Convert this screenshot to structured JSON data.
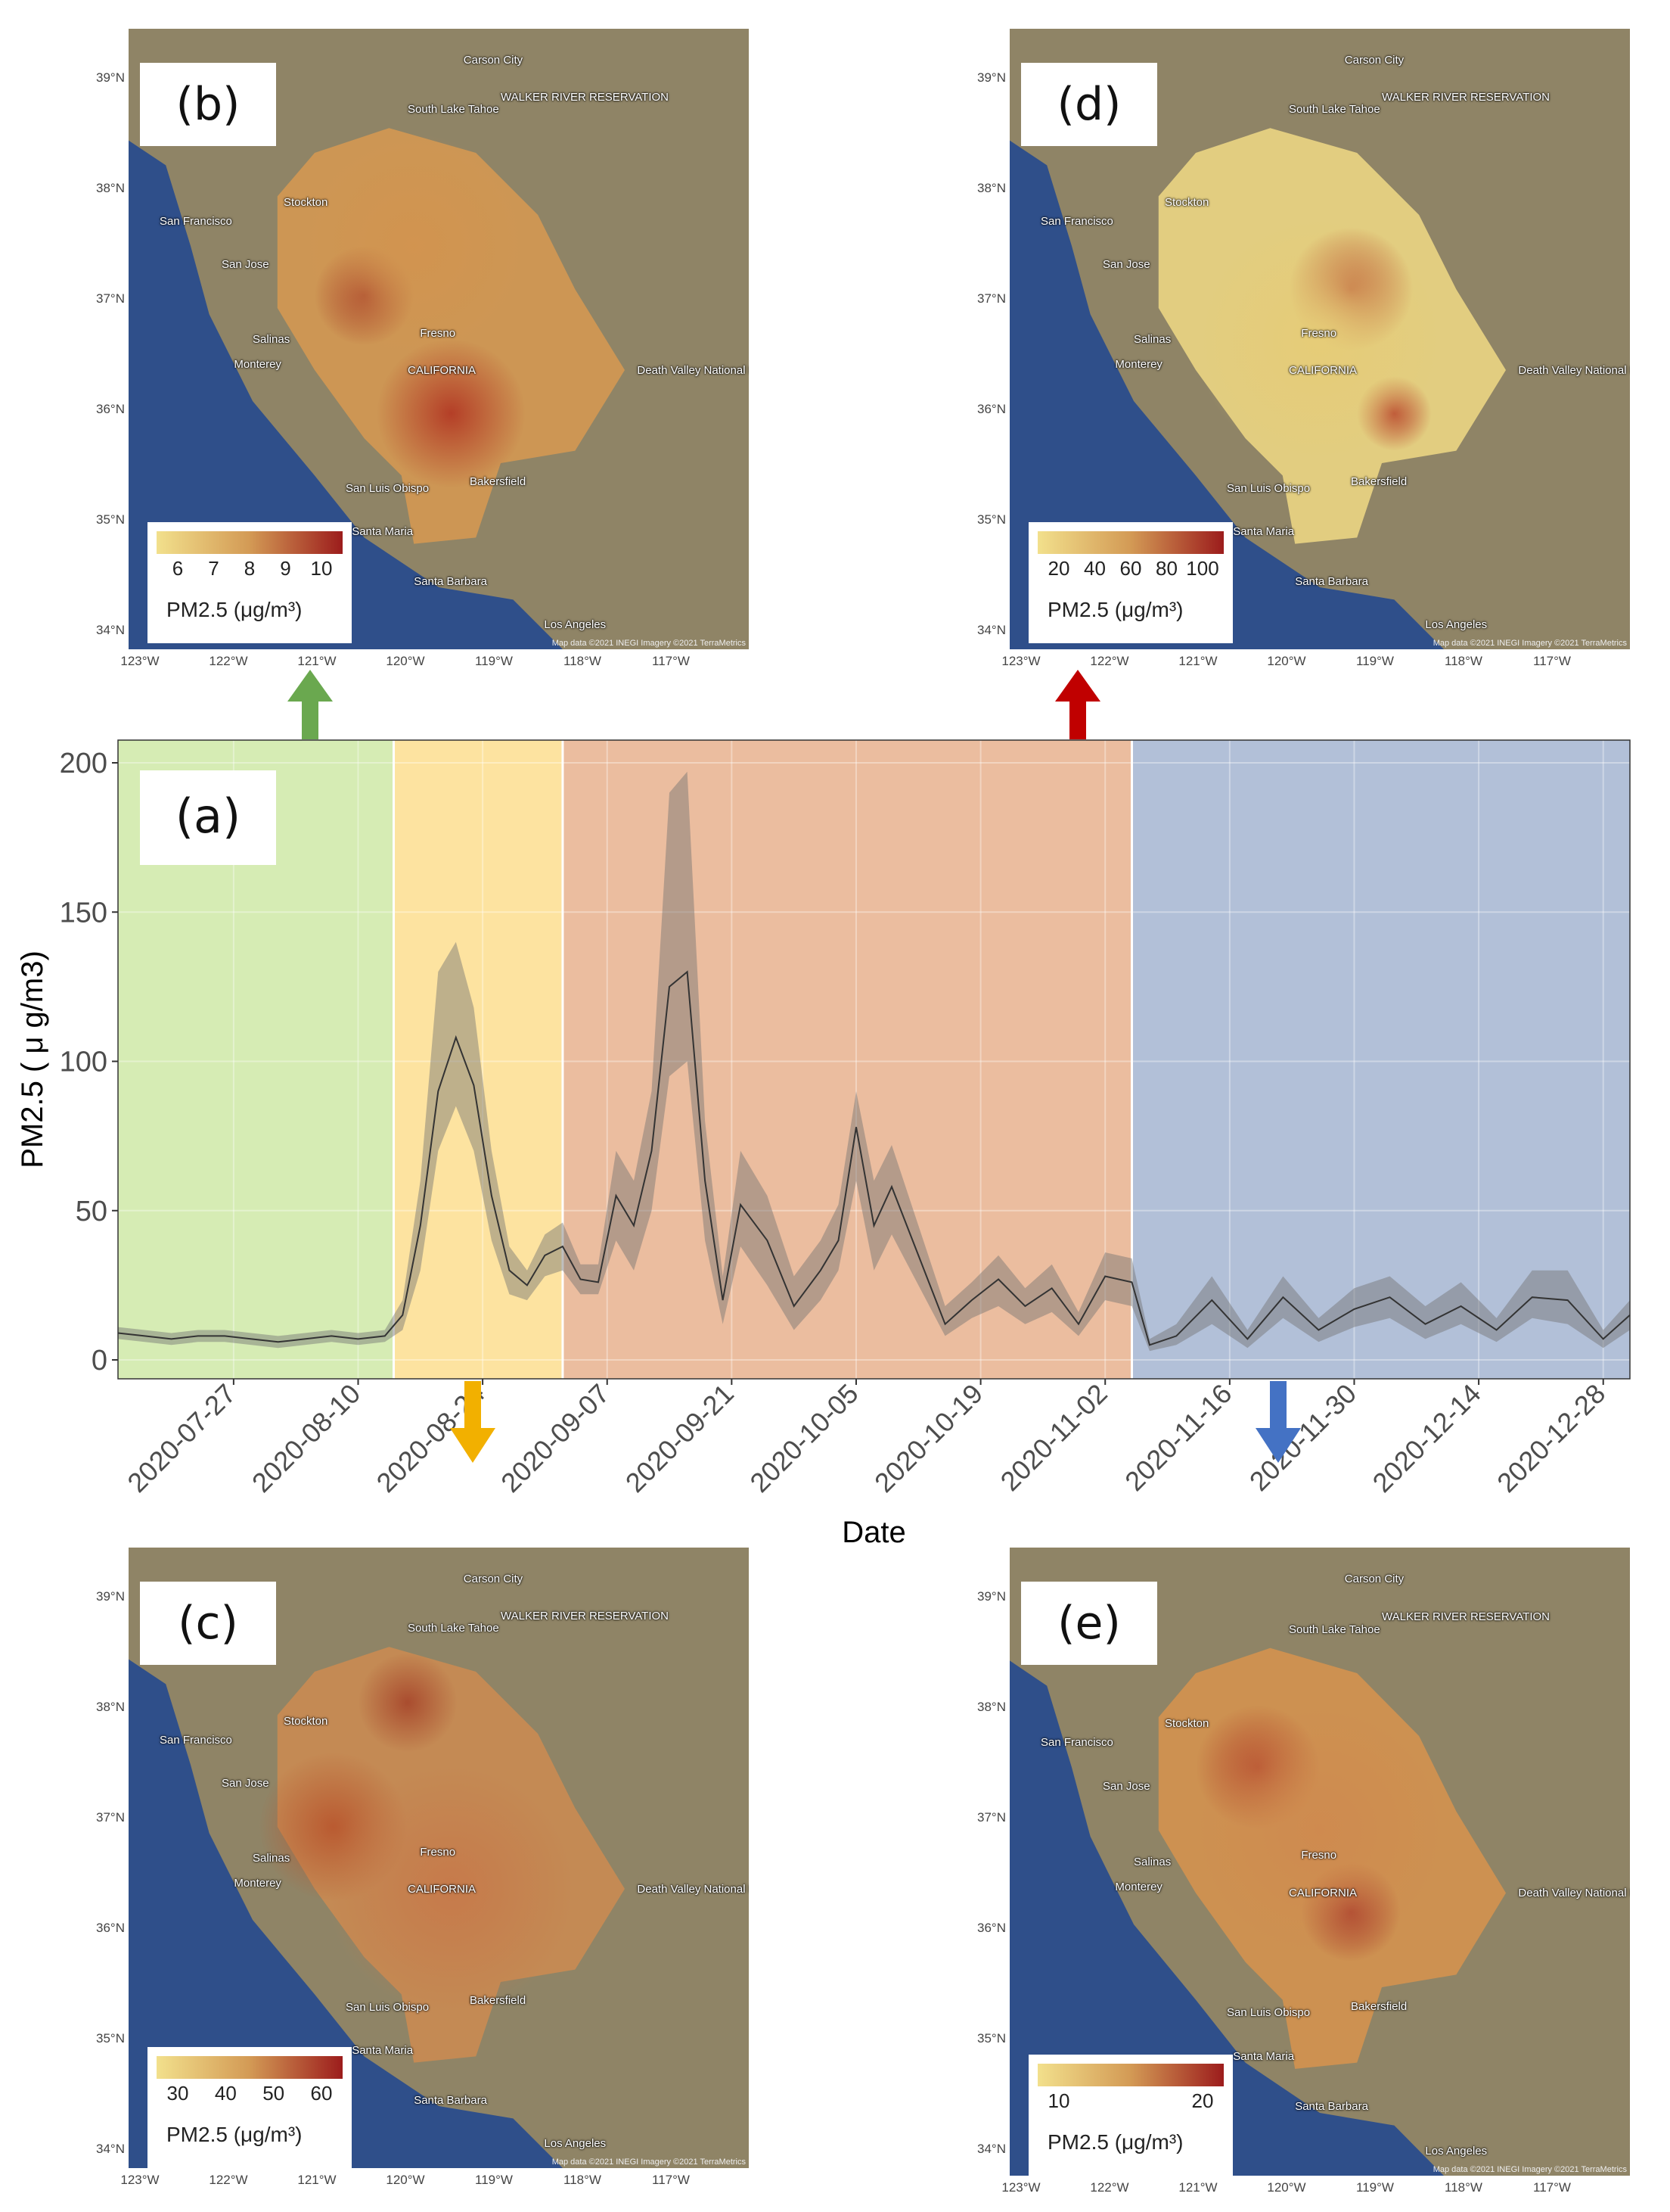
{
  "chart_data": {
    "type": "line",
    "panel_label": "(a)",
    "xlabel": "Date",
    "ylabel": "PM2.5 ( μ g/m3)",
    "ylim": [
      0,
      200
    ],
    "yticks": [
      0,
      50,
      100,
      150,
      200
    ],
    "xticks": [
      "2020-07-27",
      "2020-08-10",
      "2020-08-24",
      "2020-09-07",
      "2020-09-21",
      "2020-10-05",
      "2020-10-19",
      "2020-11-02",
      "2020-11-16",
      "2020-11-30",
      "2020-12-14",
      "2020-12-28"
    ],
    "xrange": [
      "2020-07-14",
      "2020-12-31"
    ],
    "grid": true,
    "periods": [
      {
        "start": "2020-07-14",
        "end": "2020-08-14",
        "color": "#d6ecb4"
      },
      {
        "start": "2020-08-14",
        "end": "2020-09-02",
        "color": "#fde3a0"
      },
      {
        "start": "2020-09-02",
        "end": "2020-11-05",
        "color": "#ebbd9f"
      },
      {
        "start": "2020-11-05",
        "end": "2020-12-31",
        "color": "#b2c0d8"
      }
    ],
    "series": [
      {
        "color": "#333333",
        "band_color": "#707070",
        "x": [
          "2020-07-14",
          "2020-07-17",
          "2020-07-20",
          "2020-07-23",
          "2020-07-26",
          "2020-07-29",
          "2020-08-01",
          "2020-08-04",
          "2020-08-07",
          "2020-08-10",
          "2020-08-13",
          "2020-08-15",
          "2020-08-17",
          "2020-08-19",
          "2020-08-21",
          "2020-08-23",
          "2020-08-25",
          "2020-08-27",
          "2020-08-29",
          "2020-08-31",
          "2020-09-02",
          "2020-09-04",
          "2020-09-06",
          "2020-09-08",
          "2020-09-10",
          "2020-09-12",
          "2020-09-14",
          "2020-09-16",
          "2020-09-18",
          "2020-09-20",
          "2020-09-22",
          "2020-09-25",
          "2020-09-28",
          "2020-10-01",
          "2020-10-03",
          "2020-10-05",
          "2020-10-07",
          "2020-10-09",
          "2020-10-12",
          "2020-10-15",
          "2020-10-18",
          "2020-10-21",
          "2020-10-24",
          "2020-10-27",
          "2020-10-30",
          "2020-11-02",
          "2020-11-05",
          "2020-11-07",
          "2020-11-10",
          "2020-11-14",
          "2020-11-18",
          "2020-11-22",
          "2020-11-26",
          "2020-11-30",
          "2020-12-04",
          "2020-12-08",
          "2020-12-12",
          "2020-12-16",
          "2020-12-20",
          "2020-12-24",
          "2020-12-28",
          "2020-12-31"
        ],
        "y": [
          9,
          8,
          7,
          8,
          8,
          7,
          6,
          7,
          8,
          7,
          8,
          15,
          45,
          90,
          108,
          92,
          55,
          30,
          25,
          35,
          38,
          27,
          26,
          55,
          45,
          70,
          125,
          130,
          60,
          20,
          52,
          40,
          18,
          30,
          40,
          78,
          45,
          58,
          35,
          12,
          20,
          27,
          18,
          24,
          12,
          28,
          26,
          5,
          8,
          20,
          7,
          21,
          10,
          17,
          21,
          12,
          18,
          10,
          21,
          20,
          7,
          15
        ],
        "lower": [
          7,
          6,
          5,
          6,
          6,
          5,
          4,
          5,
          6,
          5,
          6,
          10,
          30,
          70,
          85,
          70,
          40,
          22,
          20,
          28,
          30,
          22,
          22,
          40,
          30,
          50,
          95,
          100,
          40,
          12,
          38,
          25,
          10,
          20,
          30,
          60,
          30,
          42,
          25,
          8,
          14,
          18,
          12,
          16,
          8,
          20,
          18,
          3,
          5,
          12,
          4,
          14,
          6,
          11,
          14,
          7,
          12,
          6,
          14,
          12,
          4,
          10
        ],
        "upper": [
          11,
          10,
          9,
          10,
          10,
          9,
          8,
          9,
          10,
          9,
          10,
          20,
          60,
          130,
          140,
          118,
          70,
          38,
          30,
          42,
          46,
          32,
          32,
          70,
          60,
          90,
          190,
          197,
          80,
          28,
          70,
          55,
          28,
          40,
          52,
          90,
          60,
          72,
          45,
          18,
          26,
          35,
          24,
          32,
          16,
          36,
          34,
          7,
          12,
          28,
          10,
          28,
          14,
          24,
          28,
          18,
          26,
          14,
          30,
          30,
          10,
          20
        ]
      }
    ]
  },
  "maps": [
    {
      "id": "b",
      "label": "(b)",
      "legend_ticks": [
        "6",
        "7",
        "8",
        "9",
        "10"
      ],
      "legend_title": "PM2.5 (μg/m³)",
      "arrow_color": "#6aa84f"
    },
    {
      "id": "d",
      "label": "(d)",
      "legend_ticks": [
        "20",
        "40",
        "60",
        "80",
        "100"
      ],
      "legend_title": "PM2.5 (μg/m³)",
      "arrow_color": "#c00000"
    },
    {
      "id": "c",
      "label": "(c)",
      "legend_ticks": [
        "30",
        "40",
        "50",
        "60"
      ],
      "legend_title": "PM2.5 (μg/m³)",
      "arrow_color": "#f2b000"
    },
    {
      "id": "e",
      "label": "(e)",
      "legend_ticks": [
        "10",
        "20"
      ],
      "legend_title": "PM2.5 (μg/m³)",
      "arrow_color": "#4472c4"
    }
  ],
  "map_axes": {
    "lat_labels": [
      "39°N",
      "38°N",
      "37°N",
      "36°N",
      "35°N",
      "34°N"
    ],
    "lon_labels": [
      "123°W",
      "122°W",
      "121°W",
      "120°W",
      "119°W",
      "118°W",
      "117°W"
    ]
  },
  "map_places": {
    "carson_city": "Carson City",
    "south_lake_tahoe": "South Lake Tahoe",
    "walker_river": "WALKER RIVER RESERVATION",
    "san_francisco": "San Francisco",
    "san_jose": "San Jose",
    "stockton": "Stockton",
    "salinas": "Salinas",
    "monterey": "Monterey",
    "california": "CALIFORNIA",
    "fresno": "Fresno",
    "death_valley": "Death Valley National Park",
    "san_luis_obispo": "San Luis Obispo",
    "santa_maria": "Santa Maria",
    "bakersfield": "Bakersfield",
    "santa_barbara": "Santa Barbara",
    "los_angeles": "Los Angeles",
    "attribution": "Map data ©2021 INEGI Imagery ©2021 TerraMetrics"
  },
  "colors": {
    "ocean": "#2f4f8a",
    "land": "#8f8466",
    "legend_low": "#f2e08c",
    "legend_mid": "#d39a55",
    "legend_high": "#9c1c1c"
  }
}
